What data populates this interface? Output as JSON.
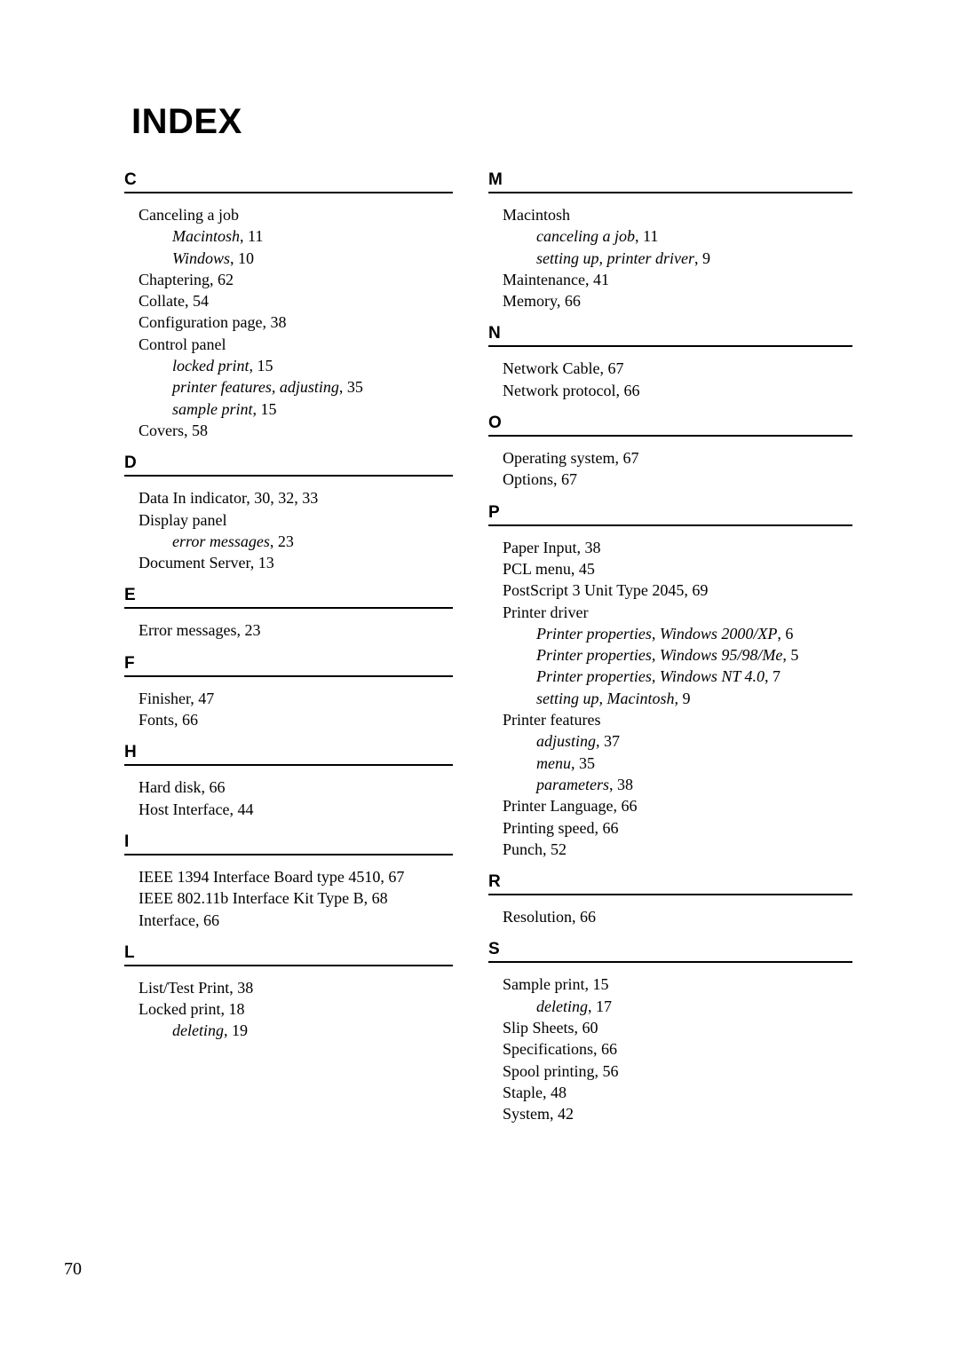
{
  "pageTitle": "INDEX",
  "pageNumber": "70",
  "left": {
    "C": {
      "letter": "C",
      "e1": "Canceling a job",
      "e1s1": "Macintosh",
      "e1s1p": ",   11",
      "e1s2": "Windows",
      "e1s2p": ",   10",
      "e2": "Chaptering,   62",
      "e3": "Collate,   54",
      "e4": "Configuration page,   38",
      "e5": "Control panel",
      "e5s1": "locked print",
      "e5s1p": ",   15",
      "e5s2": "printer features, adjusting",
      "e5s2p": ",   35",
      "e5s3": "sample print",
      "e5s3p": ",   15",
      "e6": "Covers,   58"
    },
    "D": {
      "letter": "D",
      "e1": "Data In indicator,   30, 32, 33",
      "e2": "Display panel",
      "e2s1": "error messages",
      "e2s1p": ",   23",
      "e3": "Document Server,   13"
    },
    "E": {
      "letter": "E",
      "e1": "Error messages,   23"
    },
    "F": {
      "letter": "F",
      "e1": "Finisher,   47",
      "e2": "Fonts,   66"
    },
    "H": {
      "letter": "H",
      "e1": "Hard disk,   66",
      "e2": "Host Interface,   44"
    },
    "I": {
      "letter": "I",
      "e1": "IEEE 1394 Interface Board type 4510,   67",
      "e2": "IEEE 802.11b Interface Kit Type B,   68",
      "e3": "Interface,   66"
    },
    "L": {
      "letter": "L",
      "e1": "List/Test Print,   38",
      "e2": "Locked print,   18",
      "e2s1": "deleting",
      "e2s1p": ",   19"
    }
  },
  "right": {
    "M": {
      "letter": "M",
      "e1": "Macintosh",
      "e1s1": "canceling a job",
      "e1s1p": ",   11",
      "e1s2": "setting up, printer driver",
      "e1s2p": ",   9",
      "e2": "Maintenance,   41",
      "e3": "Memory,   66"
    },
    "N": {
      "letter": "N",
      "e1": "Network Cable,   67",
      "e2": "Network protocol,   66"
    },
    "O": {
      "letter": "O",
      "e1": "Operating system,   67",
      "e2": "Options,   67"
    },
    "P": {
      "letter": "P",
      "e1": "Paper Input,   38",
      "e2": "PCL menu,   45",
      "e3": "PostScript 3 Unit Type 2045,   69",
      "e4": "Printer driver",
      "e4s1": "Printer properties, Windows 2000/XP",
      "e4s1p": ",   6",
      "e4s2": "Printer properties, Windows 95/98/Me",
      "e4s2p": ",   5",
      "e4s3": "Printer properties, Windows NT 4.0",
      "e4s3p": ",   7",
      "e4s4": "setting up, Macintosh",
      "e4s4p": ",   9",
      "e5": "Printer features",
      "e5s1": "adjusting",
      "e5s1p": ",   37",
      "e5s2": "menu",
      "e5s2p": ",   35",
      "e5s3": "parameters",
      "e5s3p": ",   38",
      "e6": "Printer Language,   66",
      "e7": "Printing speed,   66",
      "e8": "Punch,   52"
    },
    "R": {
      "letter": "R",
      "e1": "Resolution,   66"
    },
    "S": {
      "letter": "S",
      "e1": "Sample print,   15",
      "e1s1": "deleting",
      "e1s1p": ",   17",
      "e2": "Slip Sheets,   60",
      "e3": "Specifications,   66",
      "e4": "Spool printing,   56",
      "e5": "Staple,   48",
      "e6": "System,   42"
    }
  }
}
